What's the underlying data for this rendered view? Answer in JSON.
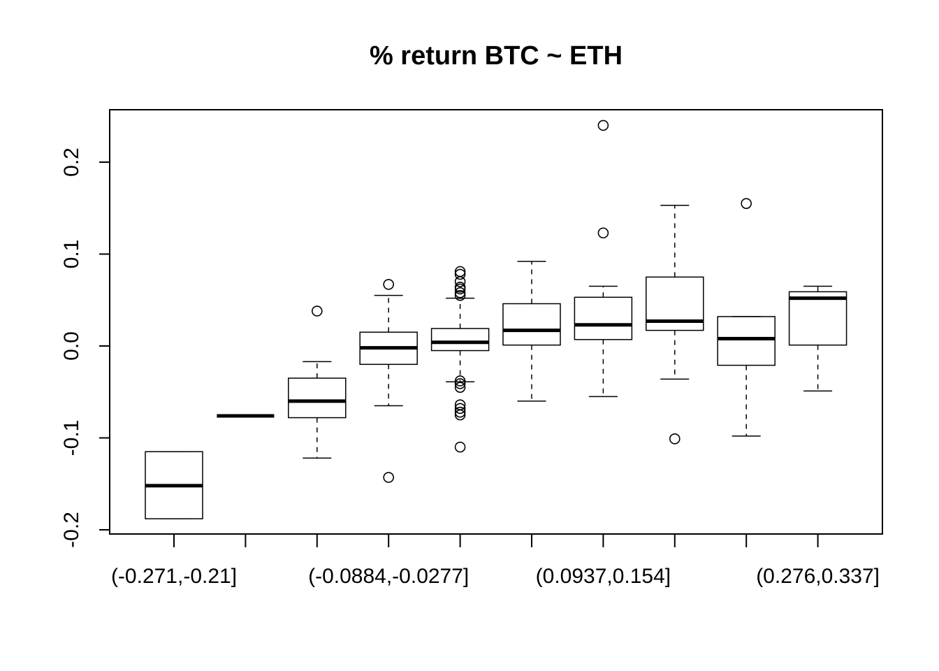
{
  "chart_data": {
    "type": "boxplot",
    "title": "% return BTC ~ ETH",
    "xlabel": "",
    "ylabel": "",
    "ylim": [
      -0.2,
      0.25
    ],
    "y_ticks": [
      -0.2,
      -0.1,
      0.0,
      0.1,
      0.2
    ],
    "y_tick_labels": [
      "-0.2",
      "-0.1",
      "0.0",
      "0.1",
      "0.2"
    ],
    "x_tick_labels_shown": [
      {
        "index": 0,
        "label": "(-0.271,-0.21]"
      },
      {
        "index": 3,
        "label": "(-0.0884,-0.0277]"
      },
      {
        "index": 6,
        "label": "(0.0937,0.154]"
      },
      {
        "index": 9,
        "label": "(0.276,0.337]"
      }
    ],
    "grid": false,
    "boxes": [
      {
        "whisker_low": -0.188,
        "q1": -0.188,
        "median": -0.152,
        "q3": -0.115,
        "whisker_high": -0.115,
        "outliers": []
      },
      {
        "whisker_low": -0.076,
        "q1": -0.076,
        "median": -0.076,
        "q3": -0.076,
        "whisker_high": -0.076,
        "outliers": []
      },
      {
        "whisker_low": -0.122,
        "q1": -0.078,
        "median": -0.06,
        "q3": -0.035,
        "whisker_high": -0.017,
        "outliers": [
          0.038
        ]
      },
      {
        "whisker_low": -0.065,
        "q1": -0.02,
        "median": -0.002,
        "q3": 0.015,
        "whisker_high": 0.055,
        "outliers": [
          0.067,
          -0.143
        ]
      },
      {
        "whisker_low": -0.039,
        "q1": -0.005,
        "median": 0.004,
        "q3": 0.019,
        "whisker_high": 0.052,
        "outliers": [
          0.055,
          0.058,
          0.062,
          0.064,
          0.07,
          0.078,
          0.081,
          -0.038,
          -0.041,
          -0.045,
          -0.064,
          -0.068,
          -0.072,
          -0.075,
          -0.11
        ]
      },
      {
        "whisker_low": -0.06,
        "q1": 0.001,
        "median": 0.017,
        "q3": 0.046,
        "whisker_high": 0.092,
        "outliers": []
      },
      {
        "whisker_low": -0.055,
        "q1": 0.007,
        "median": 0.023,
        "q3": 0.053,
        "whisker_high": 0.065,
        "outliers": [
          0.123,
          0.24
        ]
      },
      {
        "whisker_low": -0.036,
        "q1": 0.017,
        "median": 0.027,
        "q3": 0.075,
        "whisker_high": 0.153,
        "outliers": [
          -0.101
        ]
      },
      {
        "whisker_low": -0.098,
        "q1": -0.021,
        "median": 0.008,
        "q3": 0.032,
        "whisker_high": 0.032,
        "outliers": [
          0.155
        ]
      },
      {
        "whisker_low": -0.049,
        "q1": 0.001,
        "median": 0.052,
        "q3": 0.059,
        "whisker_high": 0.065,
        "outliers": []
      }
    ]
  }
}
